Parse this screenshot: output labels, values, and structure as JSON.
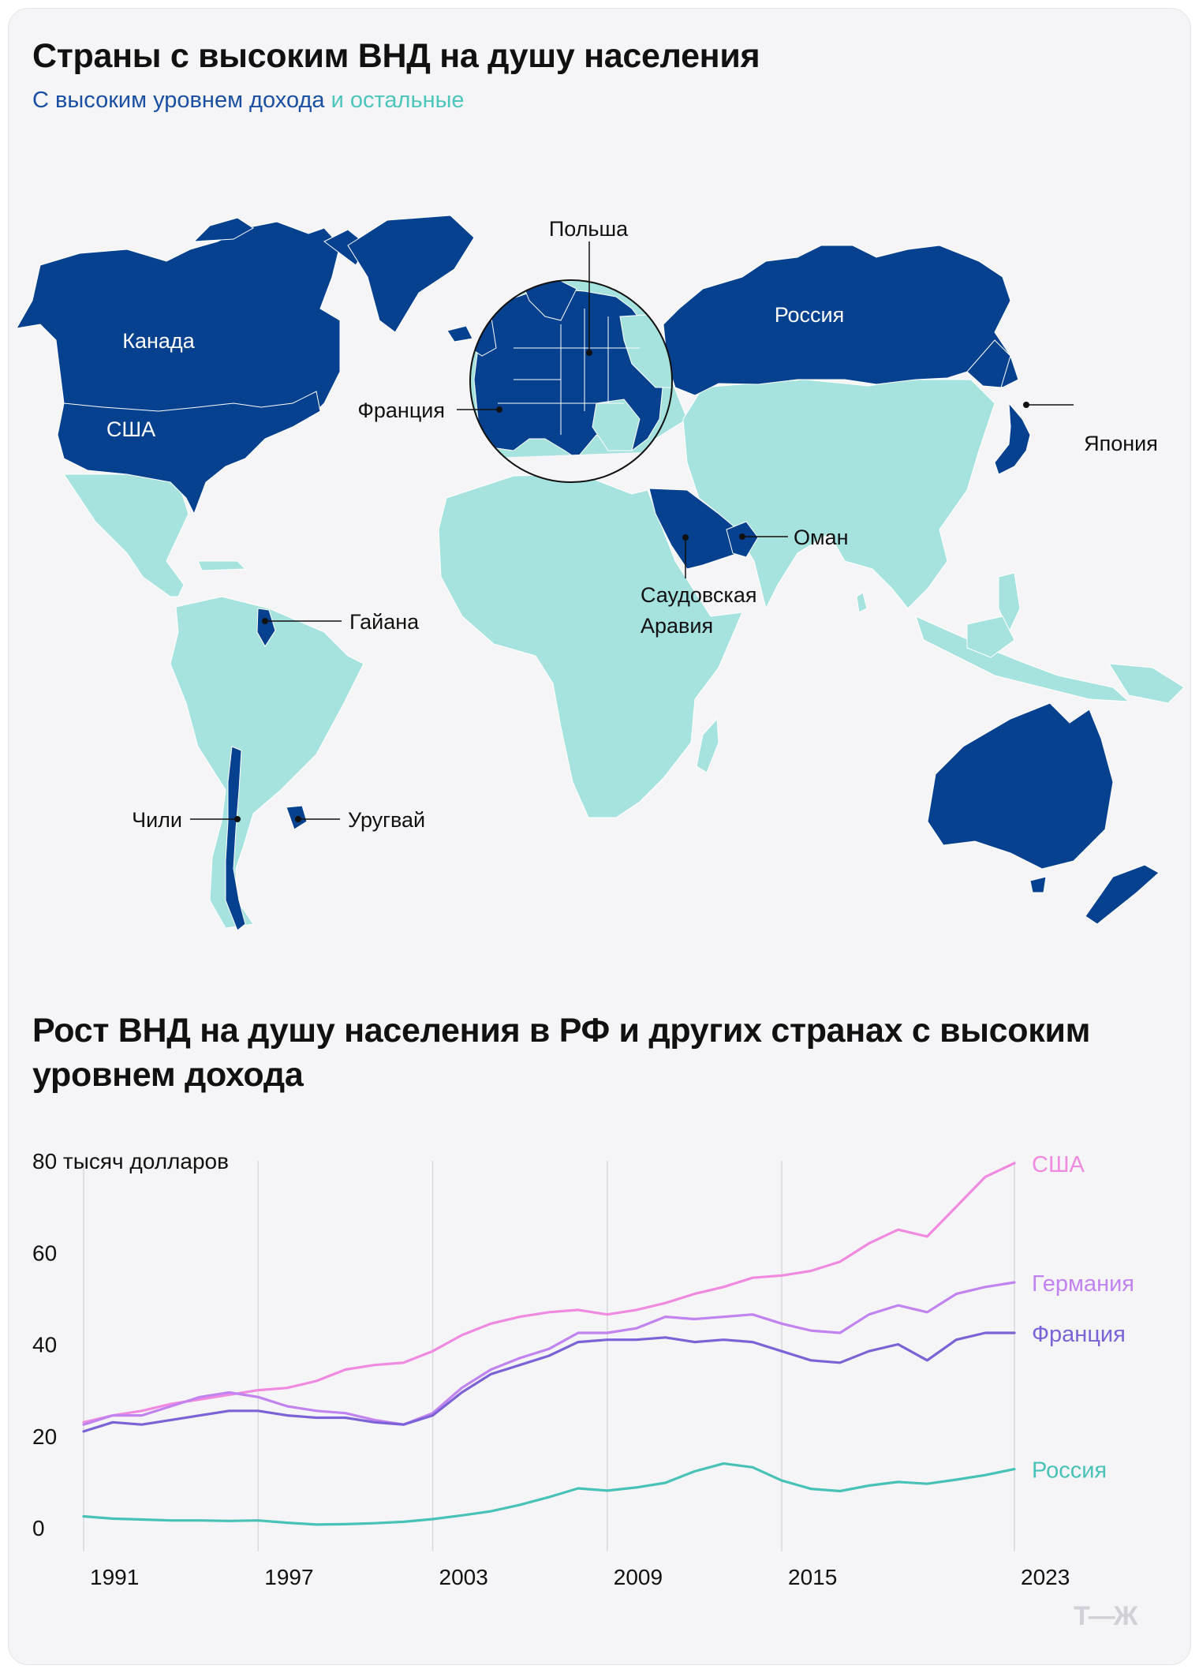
{
  "header": {
    "title": "Страны с высоким ВНД на душу населения",
    "subtitle_high": "С высоким уровнем дохода",
    "subtitle_rest": "и остальные"
  },
  "colors": {
    "high_income": "#06418f",
    "other": "#a6e2de",
    "background": "#f5f5f7"
  },
  "map": {
    "labels": {
      "canada": "Канада",
      "usa": "США",
      "russia": "Россия",
      "poland": "Польша",
      "france": "Франция",
      "japan": "Япония",
      "oman": "Оман",
      "saudi_line1": "Саудовская",
      "saudi_line2": "Аравия",
      "guyana": "Гайана",
      "chile": "Чили",
      "uruguay": "Уругвай"
    }
  },
  "chart_title": "Рост ВНД на душу населения в РФ и других странах с высоким уровнем дохода",
  "chart_data": {
    "type": "line",
    "x": [
      1991,
      1992,
      1993,
      1994,
      1995,
      1996,
      1997,
      1998,
      1999,
      2000,
      2001,
      2002,
      2003,
      2004,
      2005,
      2006,
      2007,
      2008,
      2009,
      2010,
      2011,
      2012,
      2013,
      2014,
      2015,
      2016,
      2017,
      2018,
      2019,
      2020,
      2021,
      2022,
      2023
    ],
    "x_ticks": [
      "1991",
      "1997",
      "2003",
      "2009",
      "2015",
      "2023"
    ],
    "y_ticks": [
      "0",
      "20",
      "40",
      "60"
    ],
    "y_top_label": "80 тысяч долларов",
    "ylim": [
      0,
      80
    ],
    "series": [
      {
        "name": "США",
        "color": "#f08ae0",
        "values": [
          23.0,
          24.5,
          25.5,
          27.0,
          28.0,
          29.0,
          30.0,
          30.5,
          32.0,
          34.5,
          35.5,
          36.0,
          38.5,
          42.0,
          44.5,
          46.0,
          47.0,
          47.5,
          46.5,
          47.5,
          49.0,
          51.0,
          52.5,
          54.5,
          55.0,
          56.0,
          58.0,
          62.0,
          65.0,
          63.5,
          70.0,
          76.5,
          79.5
        ]
      },
      {
        "name": "Германия",
        "color": "#c183ef",
        "values": [
          22.5,
          24.5,
          24.5,
          26.5,
          28.5,
          29.5,
          28.5,
          26.5,
          25.5,
          25.0,
          23.5,
          22.5,
          25.0,
          30.5,
          34.5,
          37.0,
          39.0,
          42.5,
          42.5,
          43.5,
          46.0,
          45.5,
          46.0,
          46.5,
          44.5,
          43.0,
          42.5,
          46.5,
          48.5,
          47.0,
          51.0,
          52.5,
          53.5
        ]
      },
      {
        "name": "Франция",
        "color": "#7b62d6",
        "values": [
          21.0,
          23.0,
          22.5,
          23.5,
          24.5,
          25.5,
          25.5,
          24.5,
          24.0,
          24.0,
          23.0,
          22.5,
          24.5,
          29.5,
          33.5,
          35.5,
          37.5,
          40.5,
          41.0,
          41.0,
          41.5,
          40.5,
          41.0,
          40.5,
          38.5,
          36.5,
          36.0,
          38.5,
          40.0,
          36.5,
          41.0,
          42.5,
          42.5
        ]
      },
      {
        "name": "Россия",
        "color": "#48c2b6",
        "values": [
          2.5,
          2.0,
          1.8,
          1.6,
          1.6,
          1.5,
          1.6,
          1.1,
          0.7,
          0.8,
          1.0,
          1.3,
          1.9,
          2.7,
          3.6,
          5.0,
          6.7,
          8.6,
          8.1,
          8.8,
          9.8,
          12.3,
          14.0,
          13.2,
          10.3,
          8.5,
          8.0,
          9.2,
          10.0,
          9.6,
          10.5,
          11.5,
          12.8
        ]
      }
    ]
  },
  "logo": "Т—Ж"
}
